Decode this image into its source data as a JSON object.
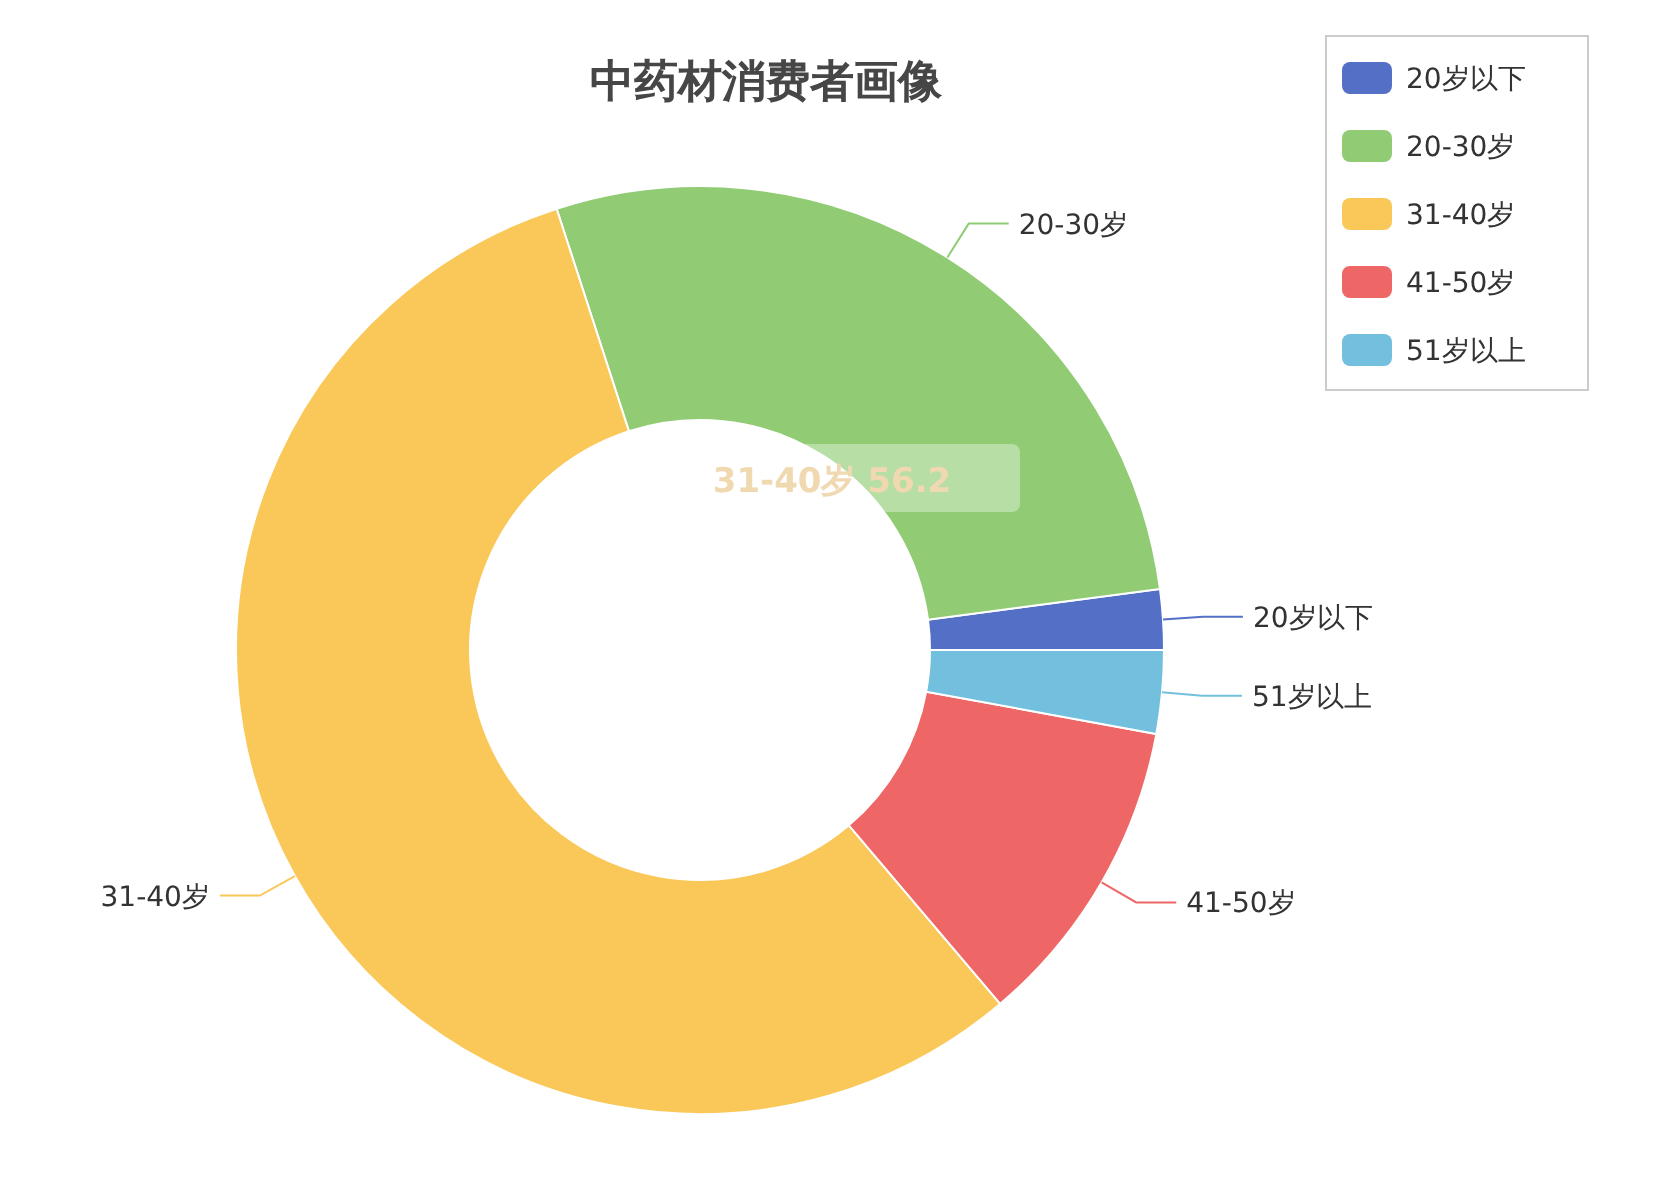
{
  "chart_data": {
    "type": "donut",
    "title": "中药材消费者画像",
    "categories": [
      "20岁以下",
      "20-30岁",
      "31-40岁",
      "41-50岁",
      "51岁以上"
    ],
    "values": [
      2.1,
      27.9,
      56.2,
      10.9,
      2.9
    ],
    "colors": [
      "#5470c6",
      "#91cc75",
      "#fac858",
      "#ee6666",
      "#73c0de"
    ],
    "legend": "top right",
    "annotations": [
      "31-40岁  56.2"
    ]
  }
}
